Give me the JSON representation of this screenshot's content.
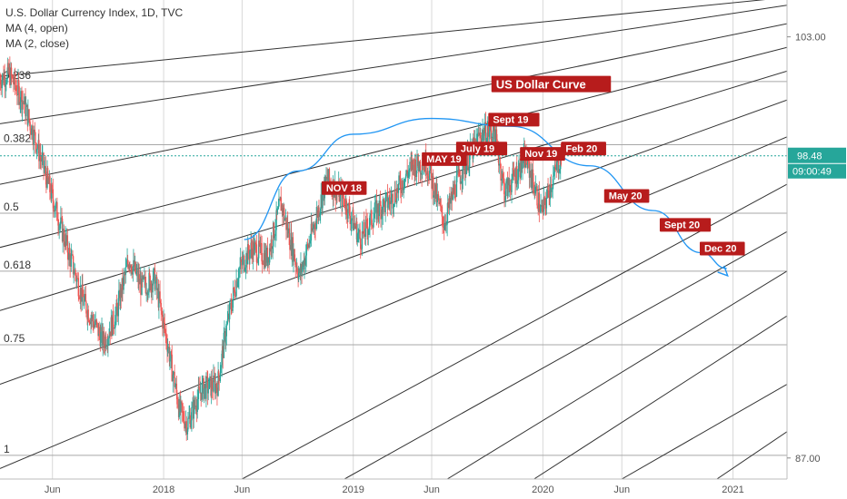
{
  "chart_data": {
    "type": "line",
    "title": "U.S. Dollar Currency Index, 1D, TVC",
    "indicators": [
      "MA (4, open)",
      "MA (2, close)"
    ],
    "x_range": [
      "2017-02-20",
      "2021-04-15"
    ],
    "y_range": [
      86.2,
      104.4
    ],
    "x_ticks": [
      {
        "date": "2017-06-01",
        "label": "Jun"
      },
      {
        "date": "2018-01-01",
        "label": "2018"
      },
      {
        "date": "2018-06-01",
        "label": "Jun"
      },
      {
        "date": "2019-01-01",
        "label": "2019"
      },
      {
        "date": "2019-06-01",
        "label": "Jun"
      },
      {
        "date": "2020-01-01",
        "label": "2020"
      },
      {
        "date": "2020-06-01",
        "label": "Jun"
      },
      {
        "date": "2021-01-01",
        "label": "2021"
      }
    ],
    "y_ticks": [
      {
        "value": 103.0,
        "label": "103.00"
      },
      {
        "value": 87.0,
        "label": "87.00"
      }
    ],
    "last_price": {
      "value": 98.48,
      "label": "98.48",
      "countdown": "09:00:49"
    },
    "fib_levels": [
      {
        "label": "0.236",
        "value": 101.3
      },
      {
        "label": "0.382",
        "value": 98.9
      },
      {
        "label": "0.5",
        "value": 96.3
      },
      {
        "label": "0.618",
        "value": 94.1
      },
      {
        "label": "0.75",
        "value": 91.3
      },
      {
        "label": "1",
        "value": 87.1
      }
    ],
    "price_series": [
      {
        "date": "2017-02-20",
        "value": 101.4
      },
      {
        "date": "2017-03-10",
        "value": 101.6
      },
      {
        "date": "2017-04-05",
        "value": 100.6
      },
      {
        "date": "2017-05-01",
        "value": 99.0
      },
      {
        "date": "2017-06-01",
        "value": 96.9
      },
      {
        "date": "2017-07-01",
        "value": 94.9
      },
      {
        "date": "2017-08-01",
        "value": 92.9
      },
      {
        "date": "2017-09-08",
        "value": 91.4
      },
      {
        "date": "2017-10-01",
        "value": 92.4
      },
      {
        "date": "2017-10-27",
        "value": 94.6
      },
      {
        "date": "2017-11-20",
        "value": 93.5
      },
      {
        "date": "2017-12-15",
        "value": 93.8
      },
      {
        "date": "2018-01-10",
        "value": 91.2
      },
      {
        "date": "2018-02-01",
        "value": 88.8
      },
      {
        "date": "2018-02-16",
        "value": 88.3
      },
      {
        "date": "2018-03-15",
        "value": 89.6
      },
      {
        "date": "2018-04-15",
        "value": 89.8
      },
      {
        "date": "2018-05-01",
        "value": 91.8
      },
      {
        "date": "2018-05-25",
        "value": 94.1
      },
      {
        "date": "2018-06-20",
        "value": 95.0
      },
      {
        "date": "2018-07-20",
        "value": 94.6
      },
      {
        "date": "2018-08-15",
        "value": 96.7
      },
      {
        "date": "2018-09-20",
        "value": 93.9
      },
      {
        "date": "2018-10-20",
        "value": 96.0
      },
      {
        "date": "2018-11-12",
        "value": 97.6
      },
      {
        "date": "2018-12-15",
        "value": 96.8
      },
      {
        "date": "2019-01-15",
        "value": 95.3
      },
      {
        "date": "2019-02-15",
        "value": 96.4
      },
      {
        "date": "2019-03-15",
        "value": 96.8
      },
      {
        "date": "2019-04-25",
        "value": 98.1
      },
      {
        "date": "2019-05-23",
        "value": 98.2
      },
      {
        "date": "2019-06-25",
        "value": 95.9
      },
      {
        "date": "2019-07-20",
        "value": 97.5
      },
      {
        "date": "2019-09-03",
        "value": 99.3
      },
      {
        "date": "2019-09-30",
        "value": 99.4
      },
      {
        "date": "2019-10-20",
        "value": 97.1
      },
      {
        "date": "2019-11-29",
        "value": 98.4
      },
      {
        "date": "2019-12-31",
        "value": 96.3
      },
      {
        "date": "2020-01-20",
        "value": 97.6
      },
      {
        "date": "2020-02-07",
        "value": 98.5
      }
    ],
    "forecast_curve": [
      {
        "date": "2018-06-05",
        "value": 95.3
      },
      {
        "date": "2018-09-15",
        "value": 97.9
      },
      {
        "date": "2019-01-01",
        "value": 99.3
      },
      {
        "date": "2019-06-01",
        "value": 99.9
      },
      {
        "date": "2019-11-01",
        "value": 99.6
      },
      {
        "date": "2020-04-01",
        "value": 98.1
      },
      {
        "date": "2020-08-01",
        "value": 96.4
      },
      {
        "date": "2020-11-01",
        "value": 94.8
      },
      {
        "date": "2020-12-20",
        "value": 94.2
      }
    ],
    "channel_lines": [
      [
        [
          "2017-02-20",
          101.5
        ],
        [
          "2021-04-15",
          104.5
        ]
      ],
      [
        [
          "2017-02-20",
          99.7
        ],
        [
          "2021-04-15",
          104.2
        ]
      ],
      [
        [
          "2017-02-20",
          97.4
        ],
        [
          "2021-04-15",
          103.5
        ]
      ],
      [
        [
          "2017-02-20",
          95.0
        ],
        [
          "2021-04-15",
          102.6
        ]
      ],
      [
        [
          "2017-02-20",
          92.6
        ],
        [
          "2021-04-15",
          101.7
        ]
      ],
      [
        [
          "2017-02-20",
          89.8
        ],
        [
          "2021-04-15",
          100.6
        ]
      ],
      [
        [
          "2017-02-20",
          86.6
        ],
        [
          "2021-04-15",
          99.2
        ]
      ],
      [
        [
          "2018-06-01",
          86.2
        ],
        [
          "2021-04-15",
          97.4
        ]
      ],
      [
        [
          "2018-12-15",
          86.2
        ],
        [
          "2021-04-15",
          95.6
        ]
      ],
      [
        [
          "2019-07-01",
          86.2
        ],
        [
          "2021-04-15",
          94.1
        ]
      ],
      [
        [
          "2019-12-15",
          86.2
        ],
        [
          "2021-04-15",
          92.4
        ]
      ],
      [
        [
          "2020-06-01",
          86.2
        ],
        [
          "2021-04-15",
          89.8
        ]
      ],
      [
        [
          "2020-12-01",
          86.2
        ],
        [
          "2021-04-15",
          88.0
        ]
      ]
    ],
    "annotations": [
      {
        "text": "US Dollar Curve",
        "date": "2019-10-01",
        "value": 101.0,
        "style": "banner"
      },
      {
        "text": "NOV 18",
        "date": "2018-11-08",
        "value": 97.1
      },
      {
        "text": "MAY 19",
        "date": "2019-05-20",
        "value": 98.2
      },
      {
        "text": "July 19",
        "date": "2019-07-25",
        "value": 98.6
      },
      {
        "text": "Sept 19",
        "date": "2019-09-25",
        "value": 99.7
      },
      {
        "text": "Nov 19",
        "date": "2019-11-25",
        "value": 98.4
      },
      {
        "text": "Feb 20",
        "date": "2020-02-12",
        "value": 98.6
      },
      {
        "text": "May 20",
        "date": "2020-05-05",
        "value": 96.8
      },
      {
        "text": "Sept 20",
        "date": "2020-08-20",
        "value": 95.7
      },
      {
        "text": "Dec 20",
        "date": "2020-11-05",
        "value": 94.8
      }
    ]
  },
  "colors": {
    "up": "#26a69a",
    "down": "#ef5350",
    "grid": "#d8d8d8",
    "fib": "#a7a7a7",
    "channel": "#333333",
    "curve": "#2196f3",
    "label_bg": "#b71c1c",
    "price_tag": "#26a69a"
  }
}
